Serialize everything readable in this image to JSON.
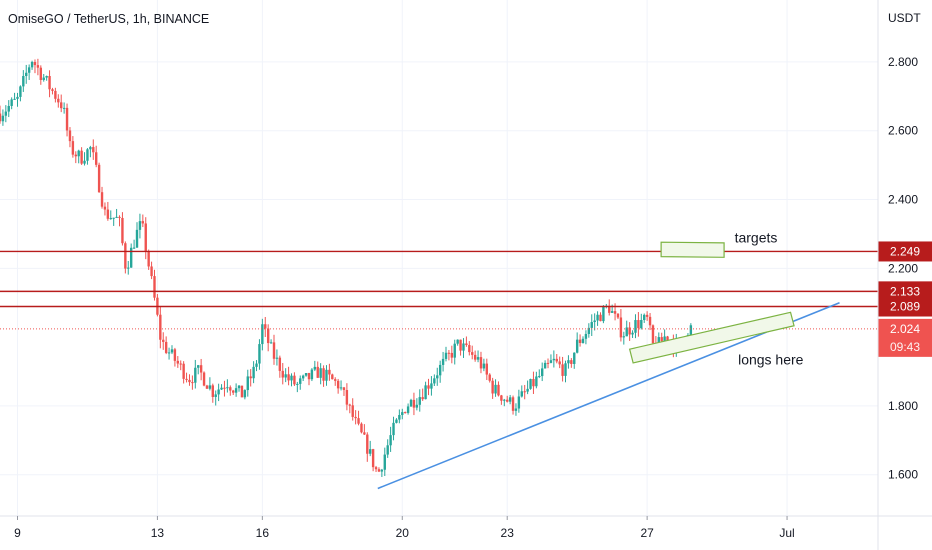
{
  "chart_data": {
    "type": "candlestick",
    "title": "OmiseGO / TetherUS, 1h, BINANCE",
    "currency": "USDT",
    "y_ticks": [
      "2.800",
      "2.600",
      "2.400",
      "2.200",
      "1.800",
      "1.600"
    ],
    "y_tick_values": [
      2.8,
      2.6,
      2.4,
      2.2,
      1.8,
      1.6
    ],
    "x_ticks": [
      {
        "label": "9",
        "day": 0
      },
      {
        "label": "13",
        "day": 4
      },
      {
        "label": "16",
        "day": 7
      },
      {
        "label": "20",
        "day": 11
      },
      {
        "label": "23",
        "day": 14
      },
      {
        "label": "27",
        "day": 18
      },
      {
        "label": "Jul",
        "day": 22
      }
    ],
    "ylim": [
      1.48,
      2.98
    ],
    "xlim_days": [
      -0.5,
      24.6
    ],
    "grid": true,
    "colors": {
      "up": "#26a69a",
      "down": "#ef5350",
      "level": "#b71c1c",
      "trend": "#4a90e2",
      "box": "#7cb342",
      "box_fill": "#f1f8e9",
      "current": "#ef5350",
      "grid": "#f0f3fa"
    },
    "horizontal_levels": [
      {
        "price": 2.249,
        "label": "2.249"
      },
      {
        "price": 2.133,
        "label": "2.133"
      },
      {
        "price": 2.089,
        "label": "2.089"
      }
    ],
    "current_price": {
      "price": 2.024,
      "label": "2.024",
      "countdown": "09:43"
    },
    "trendline": {
      "from": {
        "day": 10.3,
        "price": 1.56
      },
      "to": {
        "day": 23.5,
        "price": 2.1
      }
    },
    "annotations": [
      {
        "text": "targets",
        "day": 20.5,
        "price": 2.275
      },
      {
        "text": "longs here",
        "day": 20.6,
        "price": 1.92
      }
    ],
    "boxes": [
      {
        "role": "targets",
        "corners": [
          [
            18.4,
            2.276
          ],
          [
            20.2,
            2.274
          ],
          [
            20.2,
            2.232
          ],
          [
            18.4,
            2.234
          ]
        ]
      },
      {
        "role": "longs",
        "corners": [
          [
            17.5,
            1.965
          ],
          [
            22.1,
            2.072
          ],
          [
            22.2,
            2.033
          ],
          [
            17.6,
            1.925
          ]
        ]
      }
    ],
    "series_anchors": [
      [
        -0.5,
        2.65
      ],
      [
        0.0,
        2.69
      ],
      [
        0.4,
        2.81
      ],
      [
        0.9,
        2.73
      ],
      [
        1.3,
        2.67
      ],
      [
        1.5,
        2.55
      ],
      [
        1.8,
        2.52
      ],
      [
        2.1,
        2.55
      ],
      [
        2.3,
        2.46
      ],
      [
        2.5,
        2.36
      ],
      [
        2.9,
        2.34
      ],
      [
        3.1,
        2.2
      ],
      [
        3.4,
        2.3
      ],
      [
        3.55,
        2.33
      ],
      [
        3.9,
        2.12
      ],
      [
        4.1,
        1.99
      ],
      [
        4.3,
        1.96
      ],
      [
        4.6,
        1.92
      ],
      [
        4.9,
        1.88
      ],
      [
        5.2,
        1.9
      ],
      [
        5.6,
        1.84
      ],
      [
        6.0,
        1.87
      ],
      [
        6.4,
        1.83
      ],
      [
        6.8,
        1.91
      ],
      [
        7.0,
        2.03
      ],
      [
        7.3,
        1.95
      ],
      [
        7.7,
        1.88
      ],
      [
        8.0,
        1.86
      ],
      [
        8.6,
        1.9
      ],
      [
        9.2,
        1.86
      ],
      [
        9.7,
        1.74
      ],
      [
        10.0,
        1.68
      ],
      [
        10.3,
        1.6
      ],
      [
        10.7,
        1.72
      ],
      [
        11.1,
        1.8
      ],
      [
        11.5,
        1.83
      ],
      [
        12.0,
        1.9
      ],
      [
        12.6,
        1.98
      ],
      [
        13.2,
        1.93
      ],
      [
        13.6,
        1.85
      ],
      [
        14.2,
        1.8
      ],
      [
        14.7,
        1.86
      ],
      [
        15.3,
        1.93
      ],
      [
        15.7,
        1.9
      ],
      [
        16.0,
        1.98
      ],
      [
        16.5,
        2.05
      ],
      [
        16.9,
        2.09
      ],
      [
        17.3,
        2.01
      ],
      [
        17.7,
        2.04
      ],
      [
        18.0,
        2.05
      ],
      [
        18.2,
        1.96
      ],
      [
        18.5,
        2.0
      ],
      [
        18.9,
        1.97
      ],
      [
        19.1,
        2.02
      ],
      [
        19.3,
        2.03
      ]
    ]
  }
}
